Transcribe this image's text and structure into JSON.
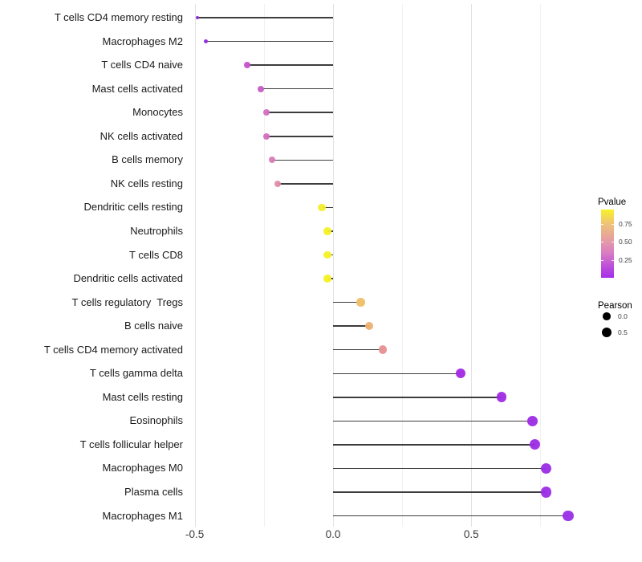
{
  "chart_data": {
    "type": "scatter",
    "variant": "lollipop",
    "orientation": "horizontal",
    "title": "",
    "xlabel": "",
    "ylabel": "",
    "x_axis": {
      "ticks": [
        {
          "value": -0.5,
          "label": "-0.5"
        },
        {
          "value": 0.0,
          "label": "0.0"
        },
        {
          "value": 0.5,
          "label": "0.5"
        }
      ],
      "minor_ticks": [
        -0.25,
        0.25,
        0.75
      ],
      "limits": [
        -0.56,
        0.93
      ]
    },
    "baseline_value": 0,
    "grid": {
      "show_vertical": true,
      "show_horizontal": false
    },
    "points": [
      {
        "label": "T cells CD4 memory resting",
        "pearson": -0.49,
        "color": "#8c25dd"
      },
      {
        "label": "Macrophages M2",
        "pearson": -0.46,
        "color": "#9128e0"
      },
      {
        "label": "T cells CD4 naive",
        "pearson": -0.31,
        "color": "#c653cb"
      },
      {
        "label": "Mast cells activated",
        "pearson": -0.26,
        "color": "#c65cc5"
      },
      {
        "label": "Monocytes",
        "pearson": -0.24,
        "color": "#d26fbe"
      },
      {
        "label": "NK cells activated",
        "pearson": -0.24,
        "color": "#d26fbe"
      },
      {
        "label": "B cells memory",
        "pearson": -0.22,
        "color": "#d77bb7"
      },
      {
        "label": "NK cells resting",
        "pearson": -0.2,
        "color": "#e08cad"
      },
      {
        "label": "Dendritic cells resting",
        "pearson": -0.04,
        "color": "#f4ed2e"
      },
      {
        "label": "Neutrophils",
        "pearson": -0.02,
        "color": "#f6f123"
      },
      {
        "label": "T cells CD8",
        "pearson": -0.02,
        "color": "#f6f123"
      },
      {
        "label": "Dendritic cells activated",
        "pearson": -0.02,
        "color": "#f6f123"
      },
      {
        "label": "T cells regulatory  Tregs",
        "pearson": 0.1,
        "color": "#f0be65"
      },
      {
        "label": "B cells naive",
        "pearson": 0.13,
        "color": "#edaf72"
      },
      {
        "label": "T cells CD4 memory activated",
        "pearson": 0.18,
        "color": "#e69092"
      },
      {
        "label": "T cells gamma delta",
        "pearson": 0.46,
        "color": "#a228e4"
      },
      {
        "label": "Mast cells resting",
        "pearson": 0.61,
        "color": "#9f2ae5"
      },
      {
        "label": "Eosinophils",
        "pearson": 0.72,
        "color": "#9c2be6"
      },
      {
        "label": "T cells follicular helper",
        "pearson": 0.73,
        "color": "#9c2be6"
      },
      {
        "label": "Macrophages M0",
        "pearson": 0.77,
        "color": "#9a2ce7"
      },
      {
        "label": "Plasma cells",
        "pearson": 0.77,
        "color": "#9a2ce7"
      },
      {
        "label": "Macrophages M1",
        "pearson": 0.85,
        "color": "#9a2de8"
      }
    ],
    "legend": {
      "pvalue": {
        "title": "Pvalue",
        "range": [
          0,
          0.95
        ],
        "ticks": [
          {
            "value": 0.75,
            "label": "0.75"
          },
          {
            "value": 0.5,
            "label": "0.50"
          },
          {
            "value": 0.25,
            "label": "0.25"
          }
        ],
        "gradient_top_to_bottom": [
          {
            "pos": 0.0,
            "color": "#f8f228"
          },
          {
            "pos": 0.21,
            "color": "#efc277"
          },
          {
            "pos": 0.47,
            "color": "#e49aa7"
          },
          {
            "pos": 0.63,
            "color": "#da7ec2"
          },
          {
            "pos": 0.84,
            "color": "#bc4ddb"
          },
          {
            "pos": 1.0,
            "color": "#a52fe9"
          }
        ]
      },
      "pearson": {
        "title": "Pearson",
        "dot_color": "#000000",
        "items": [
          {
            "value": 0.0,
            "label": "0.0"
          },
          {
            "value": 0.5,
            "label": "0.5"
          }
        ]
      }
    }
  }
}
